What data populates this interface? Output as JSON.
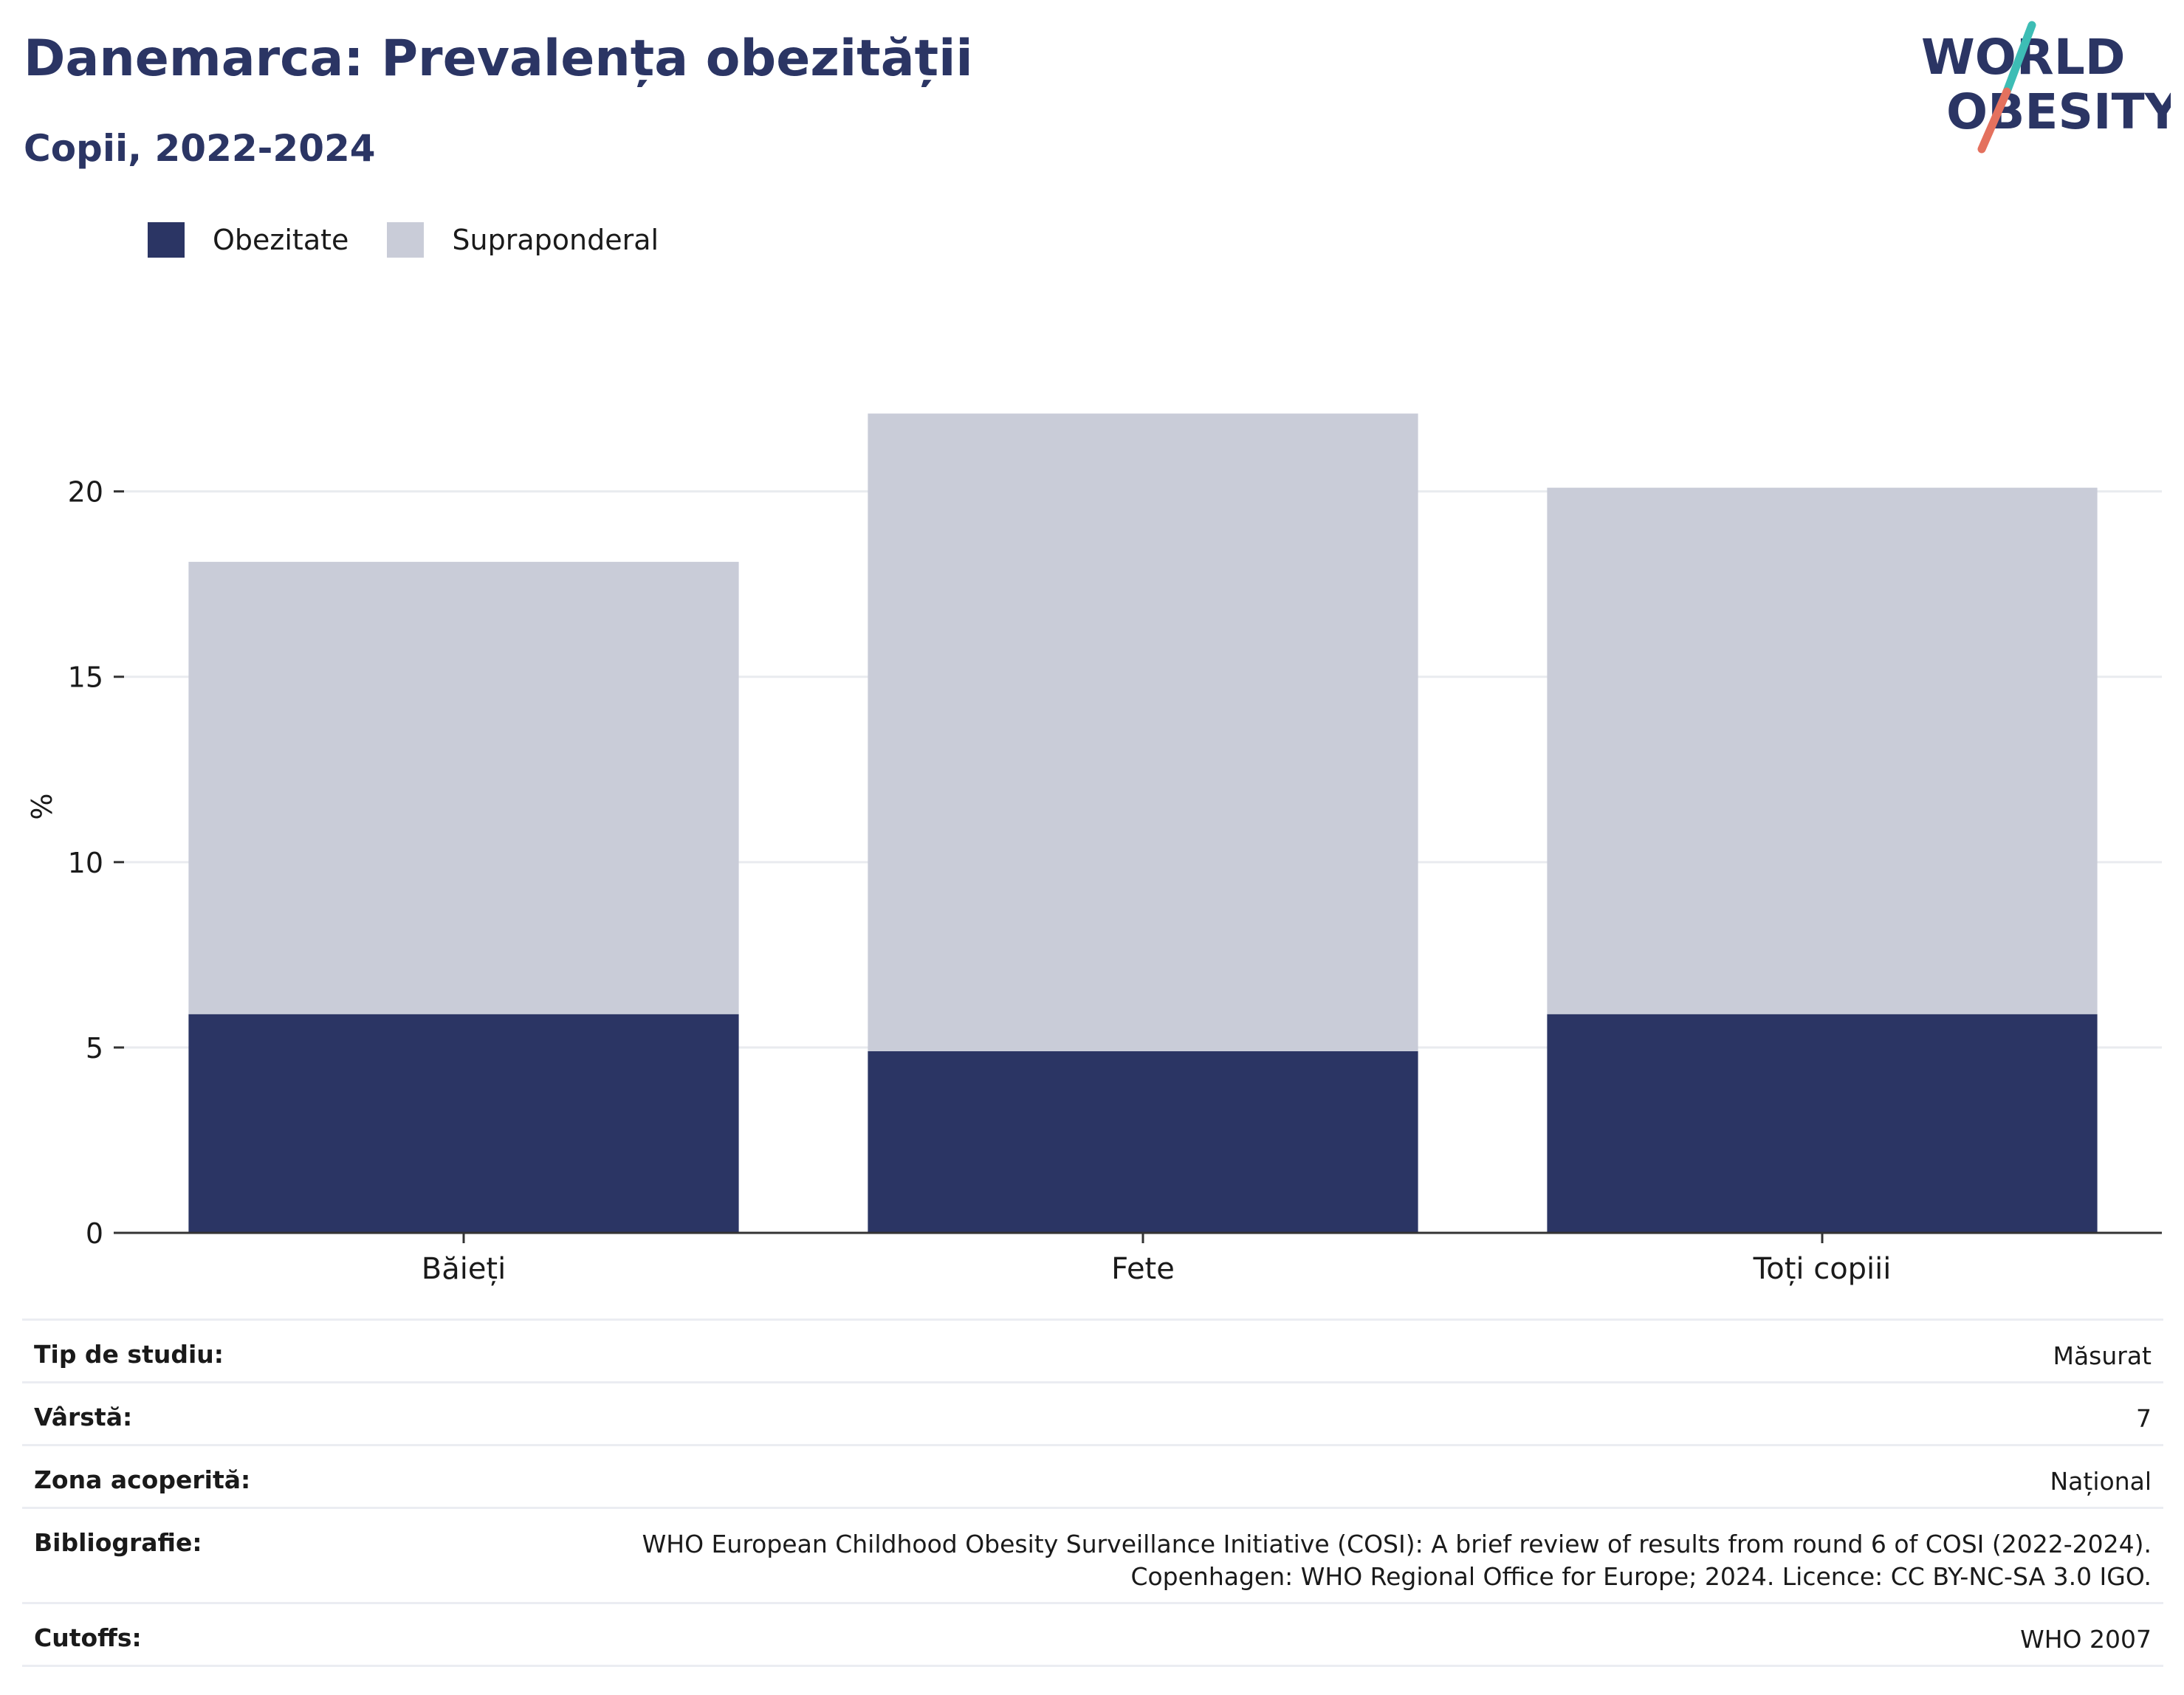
{
  "title": "Danemarca: Prevalența obezității",
  "subtitle": "Copii, 2022-2024",
  "colors": {
    "obesity": "#2b3564",
    "overweight": "#c9ccd8",
    "title": "#2b3564",
    "logo_teal": "#3dbdb5",
    "logo_coral": "#e4715e"
  },
  "logo": {
    "line1": "WORLD",
    "line2": "OBESITY",
    "icon": "world-obesity-logo"
  },
  "legend": [
    {
      "label": "Obezitate",
      "color": "#2b3564"
    },
    {
      "label": "Supraponderal",
      "color": "#c9ccd8"
    }
  ],
  "chart_data": {
    "type": "bar",
    "stacked": true,
    "ylabel": "%",
    "xlabel": "",
    "ylim": [
      0,
      23
    ],
    "yticks": [
      0,
      5,
      10,
      15,
      20
    ],
    "grid": true,
    "legend_position": "top-left",
    "categories": [
      "Băieți",
      "Fete",
      "Toți copiii"
    ],
    "series": [
      {
        "name": "Obezitate",
        "values": [
          5.9,
          4.9,
          5.9
        ],
        "color": "#2b3564"
      },
      {
        "name": "Supraponderal",
        "values": [
          12.2,
          17.2,
          14.2
        ],
        "color": "#c9ccd8"
      }
    ]
  },
  "meta": [
    {
      "key": "Tip de studiu:",
      "value": "Măsurat"
    },
    {
      "key": "Vârstă:",
      "value": "7"
    },
    {
      "key": "Zona acoperită:",
      "value": "Național"
    },
    {
      "key": "Bibliografie:",
      "value_lines": [
        "WHO European Childhood Obesity Surveillance Initiative (COSI): A brief review of results from round 6 of COSI (2022-2024).",
        "Copenhagen: WHO Regional Office for Europe; 2024. Licence: CC BY-NC-SA 3.0 IGO."
      ]
    },
    {
      "key": "Cutoffs:",
      "value": "WHO 2007"
    }
  ]
}
